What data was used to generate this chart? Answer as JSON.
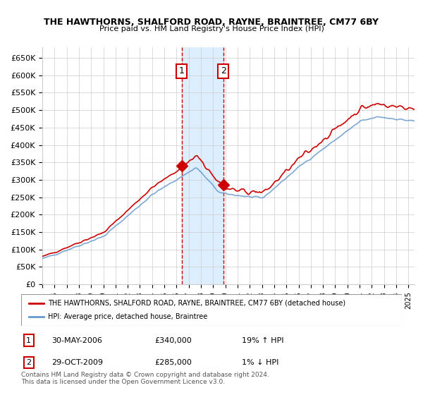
{
  "title": "THE HAWTHORNS, SHALFORD ROAD, RAYNE, BRAINTREE, CM77 6BY",
  "subtitle": "Price paid vs. HM Land Registry's House Price Index (HPI)",
  "legend_line1": "THE HAWTHORNS, SHALFORD ROAD, RAYNE, BRAINTREE, CM77 6BY (detached house)",
  "legend_line2": "HPI: Average price, detached house, Braintree",
  "annotation1_label": "1",
  "annotation1_date": "30-MAY-2006",
  "annotation1_price": "£340,000",
  "annotation1_hpi": "19% ↑ HPI",
  "annotation2_label": "2",
  "annotation2_date": "29-OCT-2009",
  "annotation2_price": "£285,000",
  "annotation2_hpi": "1% ↓ HPI",
  "copyright_text": "Contains HM Land Registry data © Crown copyright and database right 2024.\nThis data is licensed under the Open Government Licence v3.0.",
  "red_color": "#cc0000",
  "blue_color": "#6699cc",
  "shade_color": "#ddeeff",
  "background_color": "#ffffff",
  "grid_color": "#cccccc",
  "vline1_x": 2006.42,
  "vline2_x": 2009.83,
  "point1_x": 2006.42,
  "point1_y": 340000,
  "point2_x": 2009.83,
  "point2_y": 285000,
  "ylim": [
    0,
    680000
  ],
  "xlim_start": 1995.0,
  "xlim_end": 2025.5
}
